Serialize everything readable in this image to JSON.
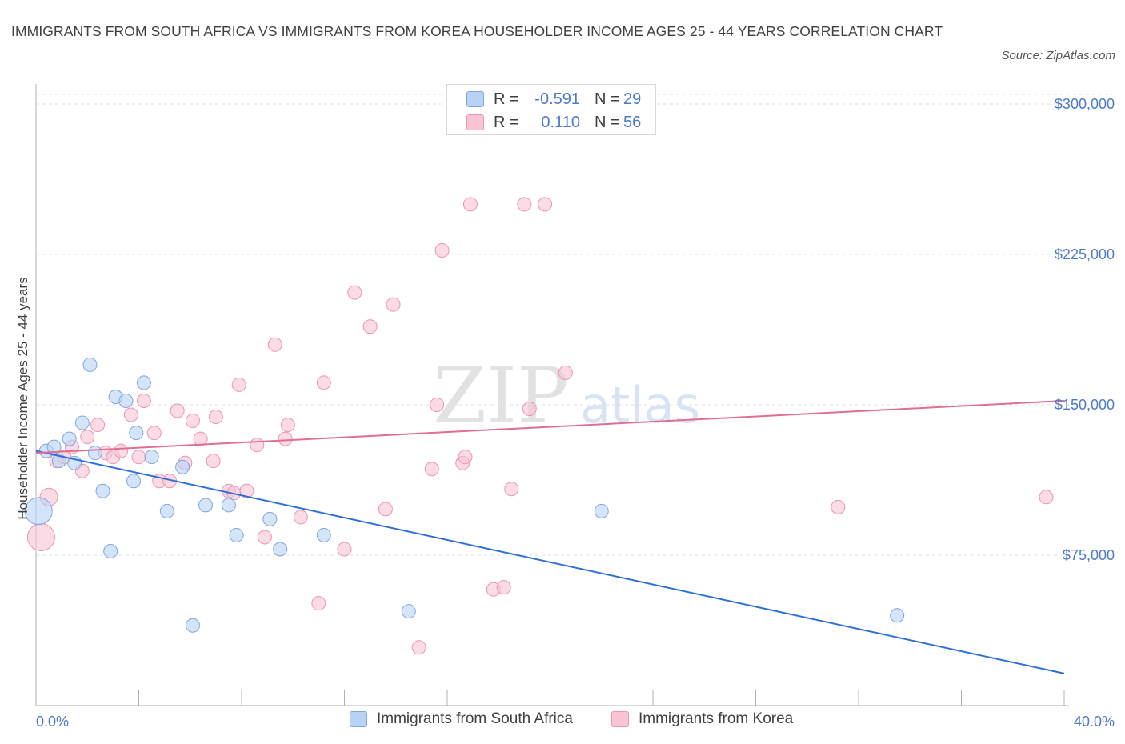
{
  "title": "IMMIGRANTS FROM SOUTH AFRICA VS IMMIGRANTS FROM KOREA HOUSEHOLDER INCOME AGES 25 - 44 YEARS CORRELATION CHART",
  "source": "Source: ZipAtlas.com",
  "watermark": {
    "zip": "ZIP",
    "atlas": "atlas"
  },
  "legend": {
    "rows": [
      {
        "r_label": "R =",
        "r_value": "-0.591",
        "n_label": "N =",
        "n_value": "29",
        "color": "#b9d3f5",
        "border": "#7ea6e0"
      },
      {
        "r_label": "R =",
        "r_value": "0.110",
        "n_label": "N =",
        "n_value": "56",
        "color": "#f9c5d5",
        "border": "#ee93b0"
      }
    ]
  },
  "bottom_legend": [
    {
      "label": "Immigrants from South Africa",
      "color": "#b9d3f5",
      "border": "#7ea6e0"
    },
    {
      "label": "Immigrants from Korea",
      "color": "#f9c5d5",
      "border": "#ee93b0"
    }
  ],
  "chart_data": {
    "type": "scatter",
    "title": "IMMIGRANTS FROM SOUTH AFRICA VS IMMIGRANTS FROM KOREA HOUSEHOLDER INCOME AGES 25 - 44 YEARS CORRELATION CHART",
    "xlabel": "",
    "ylabel": "Householder Income Ages 25 - 44 years",
    "xlim": [
      0,
      40
    ],
    "ylim": [
      0,
      300000
    ],
    "x_tick_labels": [
      {
        "value": 0,
        "label": "0.0%"
      },
      {
        "value": 40,
        "label": "40.0%"
      }
    ],
    "y_tick_labels": [
      {
        "value": 75000,
        "label": "$75,000"
      },
      {
        "value": 150000,
        "label": "$150,000"
      },
      {
        "value": 225000,
        "label": "$225,000"
      },
      {
        "value": 300000,
        "label": "$300,000"
      }
    ],
    "series": [
      {
        "name": "Immigrants from South Africa",
        "color": "#b9d3f5",
        "stroke": "#7ea6e0",
        "line_color": "#2e6fd6",
        "trend": {
          "x0": 0,
          "y0": 127000,
          "x1": 40,
          "y1": 16000
        },
        "points": [
          {
            "x": 0.1,
            "y": 97000,
            "big": true
          },
          {
            "x": 0.4,
            "y": 127000
          },
          {
            "x": 0.7,
            "y": 129000
          },
          {
            "x": 0.9,
            "y": 122000
          },
          {
            "x": 1.3,
            "y": 133000
          },
          {
            "x": 1.5,
            "y": 121000
          },
          {
            "x": 1.8,
            "y": 141000
          },
          {
            "x": 2.1,
            "y": 170000
          },
          {
            "x": 2.3,
            "y": 126000
          },
          {
            "x": 2.6,
            "y": 107000
          },
          {
            "x": 2.9,
            "y": 77000
          },
          {
            "x": 3.1,
            "y": 154000
          },
          {
            "x": 3.5,
            "y": 152000
          },
          {
            "x": 3.8,
            "y": 112000
          },
          {
            "x": 3.9,
            "y": 136000
          },
          {
            "x": 4.2,
            "y": 161000
          },
          {
            "x": 4.5,
            "y": 124000
          },
          {
            "x": 5.1,
            "y": 97000
          },
          {
            "x": 5.7,
            "y": 119000
          },
          {
            "x": 6.1,
            "y": 40000
          },
          {
            "x": 6.6,
            "y": 100000
          },
          {
            "x": 7.5,
            "y": 100000
          },
          {
            "x": 7.8,
            "y": 85000
          },
          {
            "x": 9.1,
            "y": 93000
          },
          {
            "x": 9.5,
            "y": 78000
          },
          {
            "x": 11.2,
            "y": 85000
          },
          {
            "x": 14.5,
            "y": 47000
          },
          {
            "x": 22.0,
            "y": 97000
          },
          {
            "x": 33.5,
            "y": 45000
          }
        ]
      },
      {
        "name": "Immigrants from Korea",
        "color": "#f9c5d5",
        "stroke": "#ee93b0",
        "line_color": "#e06d96",
        "trend": {
          "x0": 0,
          "y0": 126000,
          "x1": 40,
          "y1": 152000
        },
        "points": [
          {
            "x": 0.2,
            "y": 84000,
            "big": true
          },
          {
            "x": 0.5,
            "y": 104000,
            "medium": true
          },
          {
            "x": 0.8,
            "y": 122000
          },
          {
            "x": 1.1,
            "y": 124000
          },
          {
            "x": 1.4,
            "y": 129000
          },
          {
            "x": 1.8,
            "y": 117000
          },
          {
            "x": 2.0,
            "y": 134000
          },
          {
            "x": 2.4,
            "y": 140000
          },
          {
            "x": 2.7,
            "y": 126000
          },
          {
            "x": 3.0,
            "y": 124000
          },
          {
            "x": 3.3,
            "y": 127000
          },
          {
            "x": 3.7,
            "y": 145000
          },
          {
            "x": 4.0,
            "y": 124000
          },
          {
            "x": 4.2,
            "y": 152000
          },
          {
            "x": 4.6,
            "y": 136000
          },
          {
            "x": 4.8,
            "y": 112000
          },
          {
            "x": 5.2,
            "y": 112000
          },
          {
            "x": 5.5,
            "y": 147000
          },
          {
            "x": 5.8,
            "y": 121000
          },
          {
            "x": 6.1,
            "y": 142000
          },
          {
            "x": 6.4,
            "y": 133000
          },
          {
            "x": 6.9,
            "y": 122000
          },
          {
            "x": 7.0,
            "y": 144000
          },
          {
            "x": 7.5,
            "y": 107000
          },
          {
            "x": 7.7,
            "y": 106000
          },
          {
            "x": 7.9,
            "y": 160000
          },
          {
            "x": 8.2,
            "y": 107000
          },
          {
            "x": 8.6,
            "y": 130000
          },
          {
            "x": 8.9,
            "y": 84000
          },
          {
            "x": 9.3,
            "y": 180000
          },
          {
            "x": 9.7,
            "y": 133000
          },
          {
            "x": 9.8,
            "y": 140000
          },
          {
            "x": 10.3,
            "y": 94000
          },
          {
            "x": 11.0,
            "y": 51000
          },
          {
            "x": 11.2,
            "y": 161000
          },
          {
            "x": 12.0,
            "y": 78000
          },
          {
            "x": 12.4,
            "y": 206000
          },
          {
            "x": 13.0,
            "y": 189000
          },
          {
            "x": 13.6,
            "y": 98000
          },
          {
            "x": 13.9,
            "y": 200000
          },
          {
            "x": 14.9,
            "y": 29000
          },
          {
            "x": 15.4,
            "y": 118000
          },
          {
            "x": 15.6,
            "y": 150000
          },
          {
            "x": 15.8,
            "y": 227000
          },
          {
            "x": 16.6,
            "y": 121000
          },
          {
            "x": 16.7,
            "y": 124000
          },
          {
            "x": 16.9,
            "y": 250000
          },
          {
            "x": 17.8,
            "y": 58000
          },
          {
            "x": 18.2,
            "y": 59000
          },
          {
            "x": 18.5,
            "y": 108000
          },
          {
            "x": 19.0,
            "y": 250000
          },
          {
            "x": 19.2,
            "y": 148000
          },
          {
            "x": 19.8,
            "y": 250000
          },
          {
            "x": 20.6,
            "y": 166000
          },
          {
            "x": 31.2,
            "y": 99000
          },
          {
            "x": 39.3,
            "y": 104000
          }
        ]
      }
    ]
  }
}
